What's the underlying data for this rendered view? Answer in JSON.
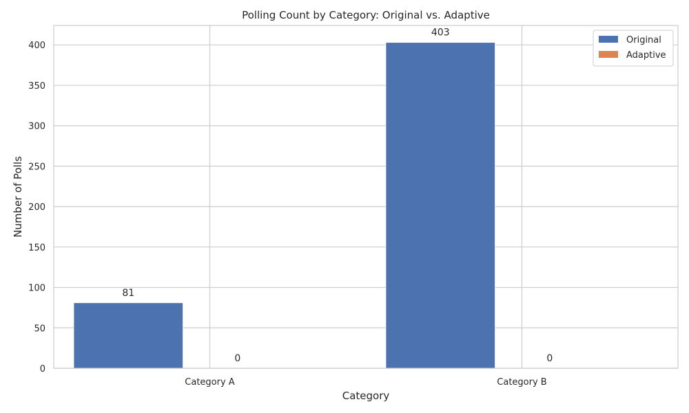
{
  "chart_data": {
    "type": "bar",
    "title": "Polling Count by Category: Original vs. Adaptive",
    "xlabel": "Category",
    "ylabel": "Number of Polls",
    "categories": [
      "Category A",
      "Category B"
    ],
    "series": [
      {
        "name": "Original",
        "values": [
          81,
          403
        ],
        "color": "#4c72b0"
      },
      {
        "name": "Adaptive",
        "values": [
          0,
          0
        ],
        "color": "#dd8452"
      }
    ],
    "ylim": [
      0,
      424
    ],
    "yticks": [
      0,
      50,
      100,
      150,
      200,
      250,
      300,
      350,
      400
    ],
    "grid": true,
    "legend_position": "top-right",
    "data_labels": true
  }
}
